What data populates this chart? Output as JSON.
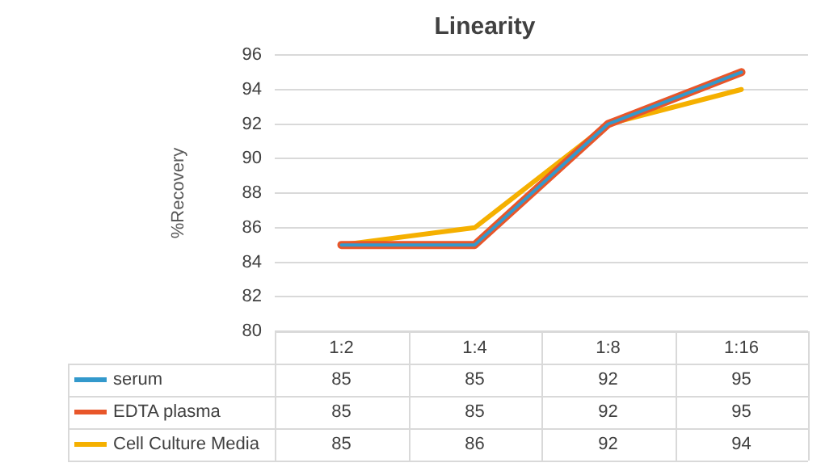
{
  "chart_data": {
    "type": "line",
    "title": "Linearity",
    "ylabel": "%Recovery",
    "categories": [
      "1:2",
      "1:4",
      "1:8",
      "1:16"
    ],
    "series": [
      {
        "name": "serum",
        "color": "#3399cc",
        "values": [
          85,
          85,
          92,
          95
        ]
      },
      {
        "name": "EDTA plasma",
        "color": "#e8562a",
        "values": [
          85,
          85,
          92,
          95
        ]
      },
      {
        "name": "Cell Culture Media",
        "color": "#f5b000",
        "values": [
          85,
          86,
          92,
          94
        ]
      }
    ],
    "ylim": [
      80,
      96
    ],
    "yticks": [
      80,
      82,
      84,
      86,
      88,
      90,
      92,
      94,
      96
    ],
    "grid": "y",
    "legend": "bottom",
    "data_labels": true,
    "marker": "none",
    "line_style": "solid"
  }
}
